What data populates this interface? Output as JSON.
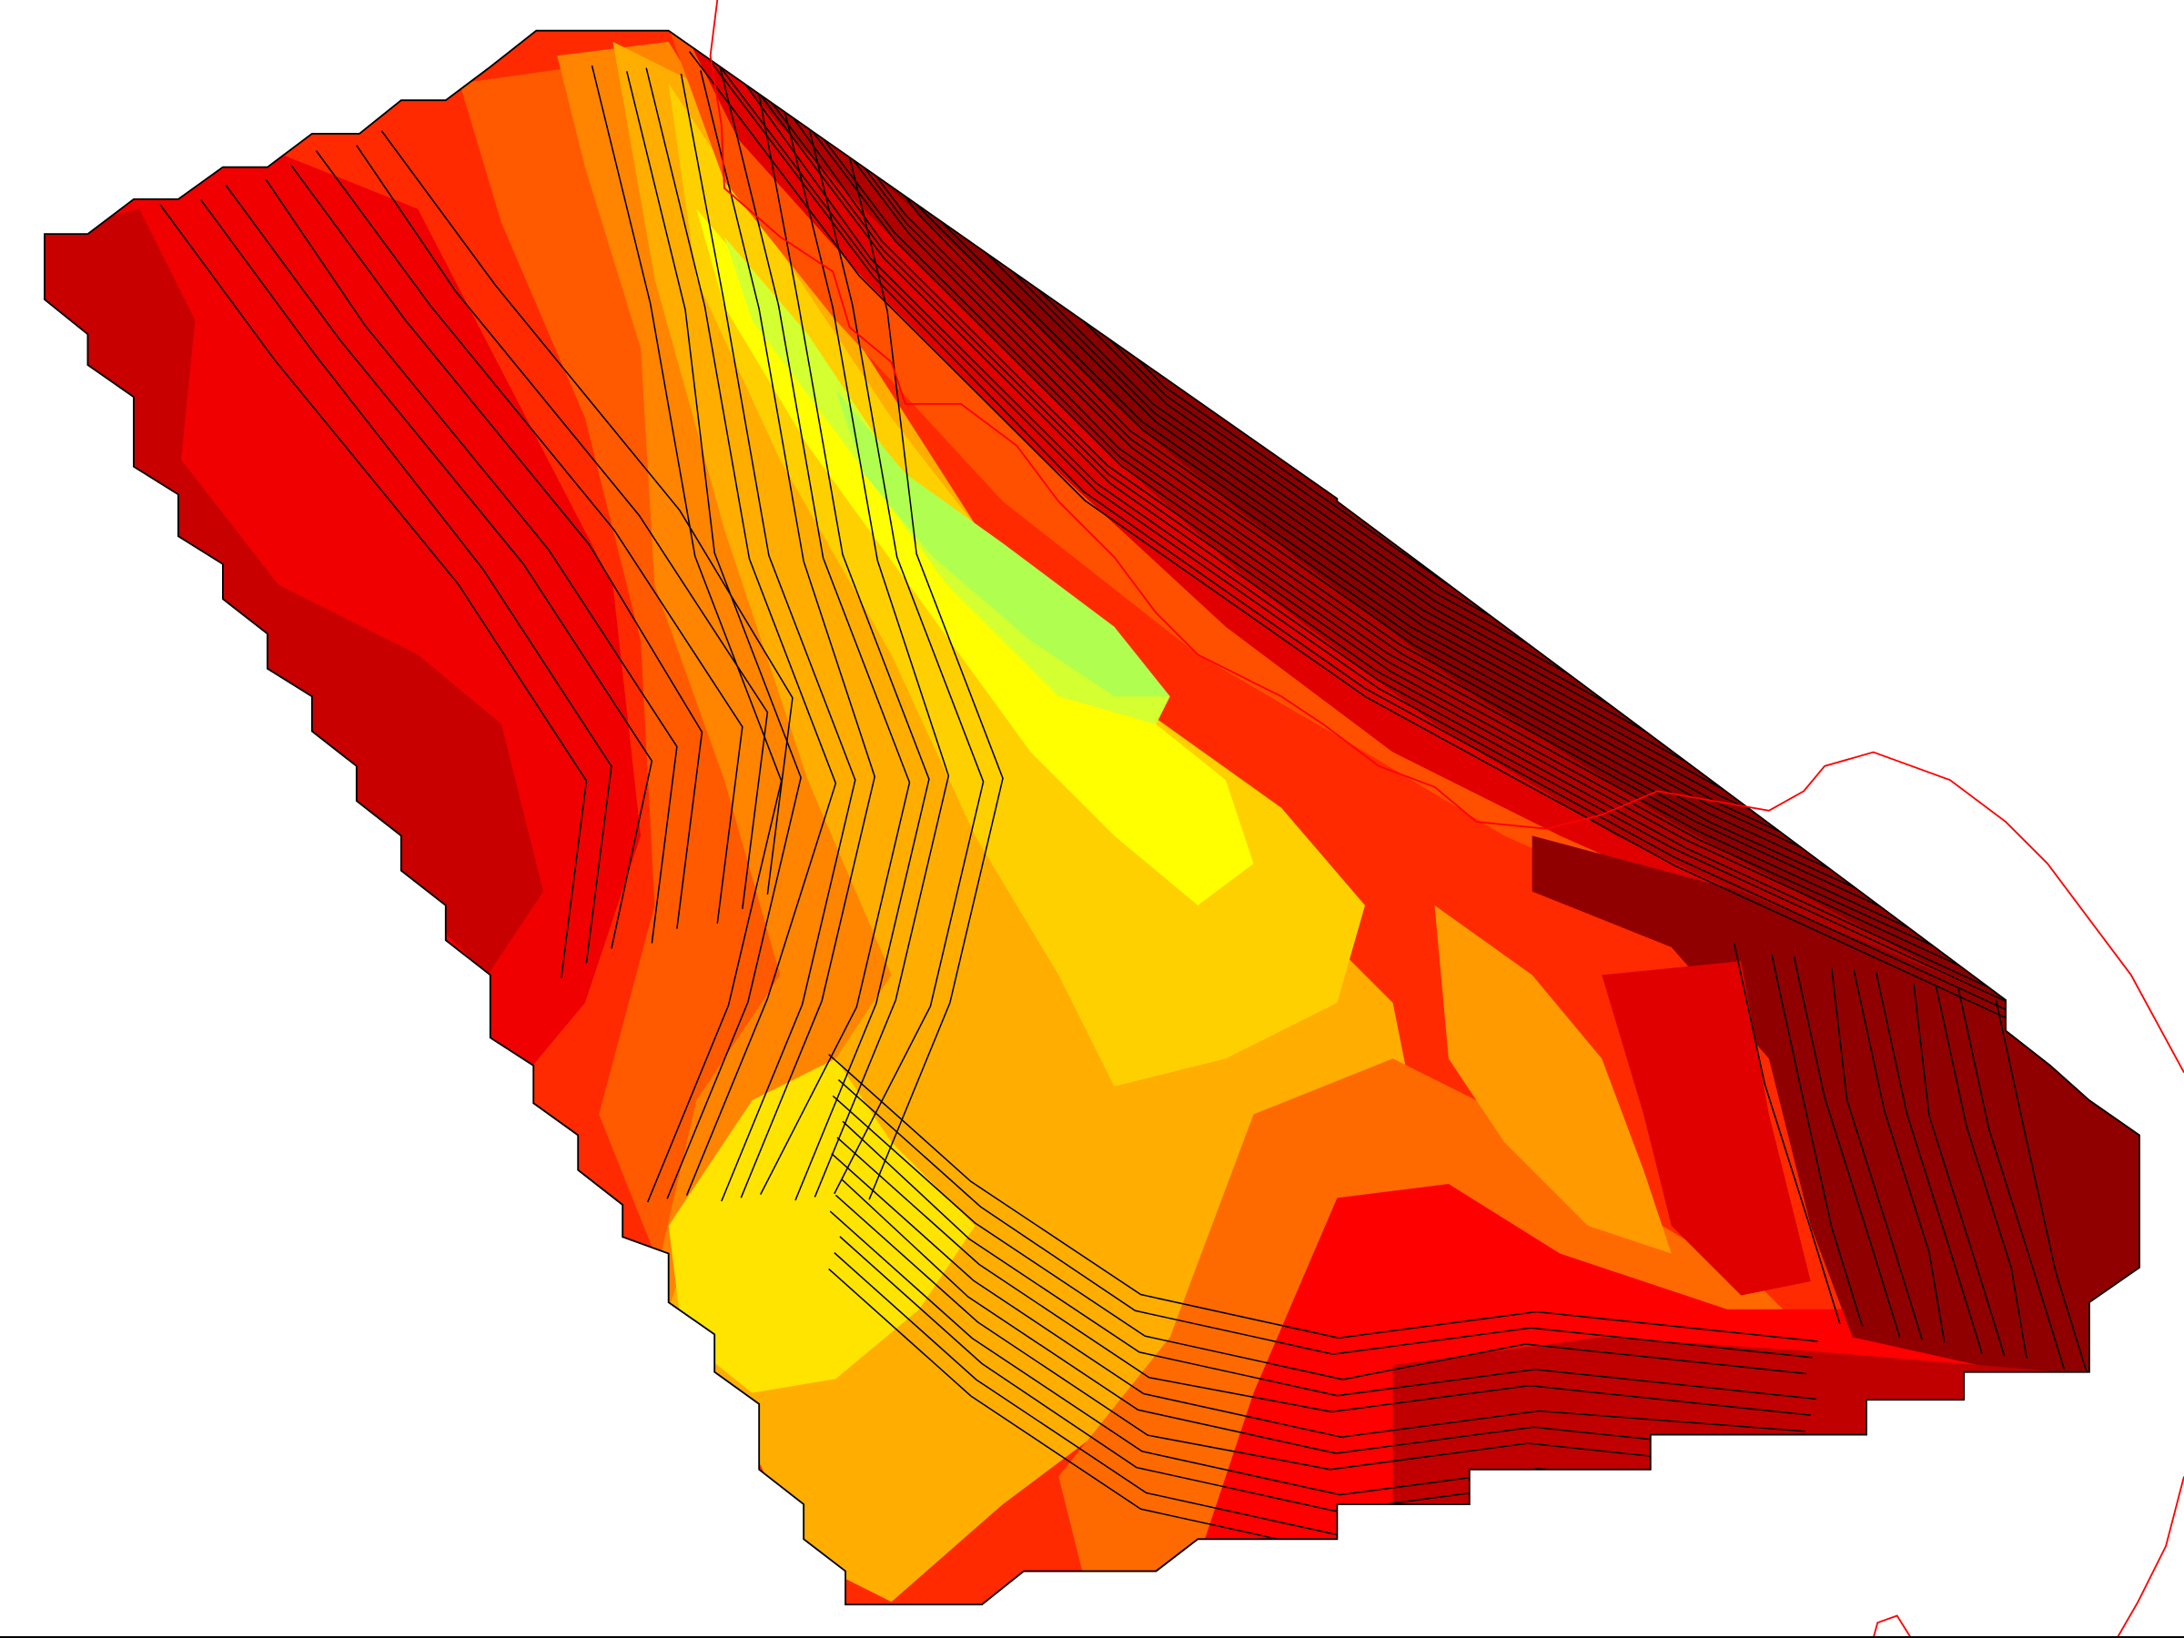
{
  "chart_data": {
    "type": "contour",
    "filled": true,
    "contour_lines": true,
    "contour_line_color": "#000000",
    "colormap": [
      "#800000",
      "#c00000",
      "#ff0000",
      "#ff4000",
      "#ff8000",
      "#ffb000",
      "#ffe000",
      "#ffff00",
      "#adff5a"
    ],
    "boundary_line_color": "#ff0000",
    "title": "",
    "xlabel": "",
    "ylabel": "",
    "legend": "none",
    "grid": false
  }
}
